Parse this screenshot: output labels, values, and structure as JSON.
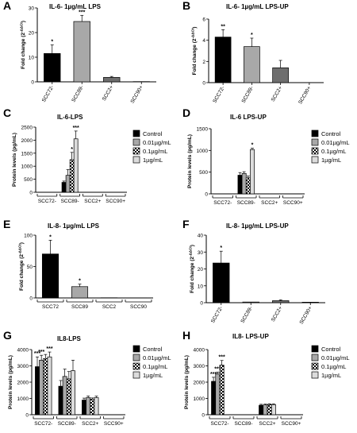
{
  "colors": {
    "black": "#000000",
    "gray_mid": "#a8a8a8",
    "gray_dark": "#6e6e6e",
    "gray_light": "#dcdcdc",
    "white": "#ffffff"
  },
  "chart_data": [
    {
      "id": "A",
      "panel_letter": "A",
      "type": "bar",
      "title": "IL-6- 1µg/mL LPS",
      "ylabel": "Fold change (2^-ΔΔCt)",
      "categories": [
        "SCC72-",
        "SCC89-",
        "SCC2+",
        "SCC90+"
      ],
      "values": [
        11.5,
        24.5,
        1.8,
        0.1
      ],
      "errors": [
        3.5,
        2.5,
        0.4,
        0
      ],
      "stars": [
        "*",
        "***",
        "",
        ""
      ],
      "colors": [
        "#000000",
        "#a8a8a8",
        "#6e6e6e",
        "#ffffff"
      ],
      "ylim": [
        0,
        30
      ],
      "yticks": [
        0,
        10,
        20,
        30
      ]
    },
    {
      "id": "B",
      "panel_letter": "B",
      "type": "bar",
      "title": "IL-6- 1µg/mL LPS-UP",
      "ylabel": "Fold change (2^-ΔΔCt)",
      "categories": [
        "SCC72-",
        "SCC89-",
        "SCC2+",
        "SCC90+"
      ],
      "values": [
        4.3,
        3.4,
        1.4,
        0
      ],
      "errors": [
        0.7,
        0.8,
        0.7,
        0
      ],
      "stars": [
        "**",
        "*",
        "",
        ""
      ],
      "colors": [
        "#000000",
        "#a8a8a8",
        "#6e6e6e",
        "#ffffff"
      ],
      "ylim": [
        0,
        6
      ],
      "yticks": [
        0,
        2,
        4,
        6
      ]
    },
    {
      "id": "C",
      "panel_letter": "C",
      "type": "bar",
      "title": "IL-6-LPS",
      "ylabel": "Protein levels (pg/mL)",
      "categories": [
        "SCC72-",
        "SCC89-",
        "SCC2+",
        "SCC90+"
      ],
      "series": [
        {
          "name": "Control",
          "values": [
            0,
            380,
            0,
            0
          ],
          "errors": [
            0,
            50,
            0,
            0
          ],
          "stars": [
            "",
            "",
            "",
            ""
          ]
        },
        {
          "name": "0.01µg/mL",
          "values": [
            0,
            650,
            0,
            0
          ],
          "errors": [
            0,
            220,
            0,
            0
          ],
          "stars": [
            "",
            "",
            "",
            ""
          ]
        },
        {
          "name": "0.1µg/mL",
          "values": [
            0,
            1250,
            0,
            0
          ],
          "errors": [
            0,
            280,
            0,
            0
          ],
          "stars": [
            "",
            "*",
            "",
            ""
          ]
        },
        {
          "name": "1µg/mL",
          "values": [
            0,
            2050,
            0,
            0
          ],
          "errors": [
            0,
            300,
            0,
            0
          ],
          "stars": [
            "",
            "***",
            "",
            ""
          ]
        }
      ],
      "ylim": [
        0,
        2500
      ],
      "yticks": [
        0,
        500,
        1000,
        1500,
        2000,
        2500
      ],
      "legend": "right"
    },
    {
      "id": "D",
      "panel_letter": "D",
      "type": "bar",
      "title": "IL-6 LPS-UP",
      "ylabel": "Protein levels (pg/mL)",
      "categories": [
        "SCC72-",
        "SCC89-",
        "SCC2+",
        "SCC90+"
      ],
      "series": [
        {
          "name": "Control",
          "values": [
            0,
            430,
            0,
            0
          ],
          "errors": [
            0,
            60,
            0,
            0
          ],
          "stars": [
            "",
            "",
            "",
            ""
          ]
        },
        {
          "name": "0.01µg/mL",
          "values": [
            0,
            470,
            0,
            0
          ],
          "errors": [
            0,
            40,
            0,
            0
          ],
          "stars": [
            "",
            "",
            "",
            ""
          ]
        },
        {
          "name": "0.1µg/mL",
          "values": [
            0,
            370,
            0,
            0
          ],
          "errors": [
            0,
            40,
            0,
            0
          ],
          "stars": [
            "",
            "",
            "",
            ""
          ]
        },
        {
          "name": "1µg/mL",
          "values": [
            0,
            1020,
            0,
            0
          ],
          "errors": [
            0,
            30,
            0,
            0
          ],
          "stars": [
            "",
            "*",
            "",
            ""
          ]
        }
      ],
      "ylim": [
        0,
        1500
      ],
      "yticks": [
        0,
        500,
        1000,
        1500
      ],
      "legend": "right"
    },
    {
      "id": "E",
      "panel_letter": "E",
      "type": "bar",
      "title": "IL-8- 1µg/mL LPS",
      "ylabel": "Fold change (2^-ΔΔCt)",
      "categories": [
        "SCC72",
        "SCC89",
        "SCC2",
        "SCC90"
      ],
      "values": [
        70,
        18,
        0.3,
        0.2
      ],
      "errors": [
        22,
        4,
        0,
        0
      ],
      "stars": [
        "*",
        "*",
        "",
        ""
      ],
      "colors": [
        "#000000",
        "#a8a8a8",
        "#6e6e6e",
        "#ffffff"
      ],
      "ylim": [
        0,
        100
      ],
      "yticks": [
        0,
        50,
        100
      ]
    },
    {
      "id": "F",
      "panel_letter": "F",
      "type": "bar",
      "title": "IL-8- 1µg/mL LPS-UP",
      "ylabel": "Fold change (2^-ΔΔCt)",
      "categories": [
        "SCC72-",
        "SCC89-",
        "SCC2+",
        "SCC90+"
      ],
      "values": [
        23.5,
        0.4,
        1.2,
        0.3
      ],
      "errors": [
        7,
        0,
        0.5,
        0
      ],
      "stars": [
        "*",
        "",
        "",
        ""
      ],
      "colors": [
        "#000000",
        "#a8a8a8",
        "#6e6e6e",
        "#ffffff"
      ],
      "ylim": [
        0,
        40
      ],
      "yticks": [
        0,
        10,
        20,
        30,
        40
      ]
    },
    {
      "id": "G",
      "panel_letter": "G",
      "type": "bar",
      "title": "IL8-LPS",
      "ylabel": "Protein levels (pg/mL)",
      "categories": [
        "SCC72-",
        "SCC89-",
        "SCC2+",
        "SCC90+"
      ],
      "series": [
        {
          "name": "Control",
          "values": [
            2950,
            1750,
            900,
            0
          ],
          "errors": [
            600,
            350,
            120,
            0
          ],
          "stars": [
            "***",
            "",
            "",
            ""
          ]
        },
        {
          "name": "0.01µg/mL",
          "values": [
            3350,
            2350,
            1050,
            0
          ],
          "errors": [
            300,
            450,
            100,
            0
          ],
          "stars": [
            "***",
            "",
            "",
            ""
          ]
        },
        {
          "name": "0.1µg/mL",
          "values": [
            3450,
            2200,
            950,
            0
          ],
          "errors": [
            250,
            450,
            80,
            0
          ],
          "stars": [
            "",
            "",
            "",
            ""
          ]
        },
        {
          "name": "1µg/mL",
          "values": [
            3550,
            2700,
            1050,
            0
          ],
          "errors": [
            300,
            650,
            90,
            0
          ],
          "stars": [
            "***",
            "",
            "",
            ""
          ]
        }
      ],
      "ylim": [
        0,
        4000
      ],
      "yticks": [
        0,
        1000,
        2000,
        3000,
        4000
      ],
      "legend": "right"
    },
    {
      "id": "H",
      "panel_letter": "H",
      "type": "bar",
      "title": "IL8- LPS-UP",
      "ylabel": "Protein levels (pg/mL)",
      "categories": [
        "SCC72-",
        "SCC89-",
        "SCC2+",
        "SCC90+"
      ],
      "series": [
        {
          "name": "Control",
          "values": [
            2050,
            0,
            580,
            0
          ],
          "errors": [
            250,
            0,
            60,
            0
          ],
          "stars": [
            "***",
            "",
            "",
            ""
          ]
        },
        {
          "name": "0.01µg/mL",
          "values": [
            2500,
            0,
            600,
            0
          ],
          "errors": [
            120,
            0,
            50,
            0
          ],
          "stars": [
            "***",
            "",
            "",
            ""
          ]
        },
        {
          "name": "0.1µg/mL",
          "values": [
            3050,
            0,
            630,
            0
          ],
          "errors": [
            280,
            0,
            40,
            0
          ],
          "stars": [
            "***",
            "",
            "",
            ""
          ]
        },
        {
          "name": "1µg/mL",
          "values": [
            0,
            0,
            620,
            0
          ],
          "errors": [
            0,
            0,
            50,
            0
          ],
          "stars": [
            "",
            "",
            "",
            ""
          ]
        }
      ],
      "ylim": [
        0,
        4000
      ],
      "yticks": [
        0,
        1000,
        2000,
        3000,
        4000
      ],
      "legend": "right"
    }
  ]
}
